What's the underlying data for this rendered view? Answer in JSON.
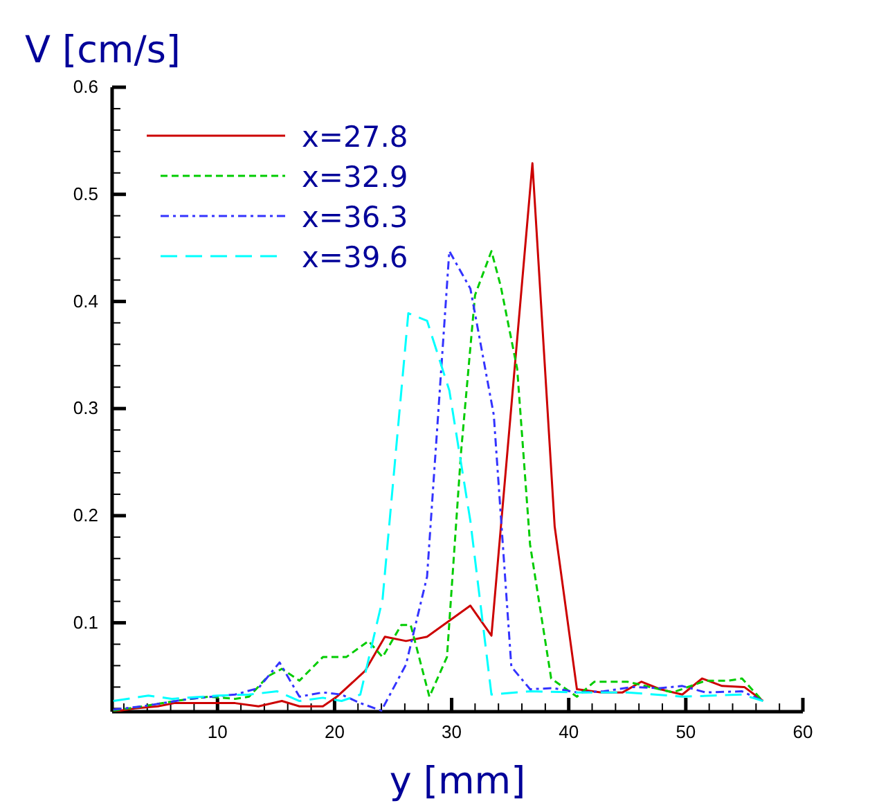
{
  "chart_data": {
    "type": "line",
    "xlabel": "y [mm]",
    "ylabel": "V [cm/s]",
    "xlim": [
      1,
      60
    ],
    "ylim": [
      0.017,
      0.6
    ],
    "xticks": [
      {
        "value": 2,
        "label": null
      },
      {
        "value": 4,
        "label": null
      },
      {
        "value": 6,
        "label": null
      },
      {
        "value": 8,
        "label": null
      },
      10,
      {
        "value": 12,
        "label": null
      },
      {
        "value": 14,
        "label": null
      },
      {
        "value": 16,
        "label": null
      },
      {
        "value": 18,
        "label": null
      },
      20,
      {
        "value": 22,
        "label": null
      },
      {
        "value": 24,
        "label": null
      },
      {
        "value": 26,
        "label": null
      },
      {
        "value": 28,
        "label": null
      },
      30,
      {
        "value": 32,
        "label": null
      },
      {
        "value": 34,
        "label": null
      },
      {
        "value": 36,
        "label": null
      },
      {
        "value": 38,
        "label": null
      },
      40,
      {
        "value": 42,
        "label": null
      },
      {
        "value": 44,
        "label": null
      },
      {
        "value": 46,
        "label": null
      },
      {
        "value": 48,
        "label": null
      },
      50,
      {
        "value": 52,
        "label": null
      },
      {
        "value": 54,
        "label": null
      },
      {
        "value": 56,
        "label": null
      },
      {
        "value": 58,
        "label": null
      },
      60
    ],
    "yticks": [
      {
        "value": 0.02,
        "label": null
      },
      {
        "value": 0.04,
        "label": null
      },
      {
        "value": 0.06,
        "label": null
      },
      {
        "value": 0.08,
        "label": null
      },
      0.1,
      {
        "value": 0.12,
        "label": null
      },
      {
        "value": 0.14,
        "label": null
      },
      {
        "value": 0.16,
        "label": null
      },
      {
        "value": 0.18,
        "label": null
      },
      0.2,
      {
        "value": 0.22,
        "label": null
      },
      {
        "value": 0.24,
        "label": null
      },
      {
        "value": 0.26,
        "label": null
      },
      {
        "value": 0.28,
        "label": null
      },
      0.3,
      {
        "value": 0.32,
        "label": null
      },
      {
        "value": 0.34,
        "label": null
      },
      {
        "value": 0.36,
        "label": null
      },
      {
        "value": 0.38,
        "label": null
      },
      0.4,
      {
        "value": 0.42,
        "label": null
      },
      {
        "value": 0.44,
        "label": null
      },
      {
        "value": 0.46,
        "label": null
      },
      {
        "value": 0.48,
        "label": null
      },
      0.5,
      {
        "value": 0.52,
        "label": null
      },
      {
        "value": 0.54,
        "label": null
      },
      {
        "value": 0.56,
        "label": null
      },
      {
        "value": 0.58,
        "label": null
      },
      0.6
    ],
    "grid": false,
    "legend": "top left",
    "marker": "none",
    "series": [
      {
        "name": "x=27.8",
        "color": "#cc0000",
        "line_style": "solid",
        "x": [
          1.1,
          2.9,
          4.9,
          6.3,
          11.5,
          13.5,
          15.5,
          17.0,
          19.0,
          20.2,
          22.6,
          24.3,
          26.1,
          27.9,
          31.6,
          33.4,
          36.9,
          38.8,
          40.7,
          42.8,
          44.6,
          46.2,
          47.8,
          49.7,
          51.4,
          53.1,
          55.0,
          56.6
        ],
        "values": [
          0.017,
          0.02,
          0.022,
          0.025,
          0.025,
          0.022,
          0.027,
          0.022,
          0.022,
          0.031,
          0.055,
          0.087,
          0.083,
          0.087,
          0.116,
          0.088,
          0.529,
          0.19,
          0.038,
          0.035,
          0.035,
          0.045,
          0.038,
          0.033,
          0.048,
          0.041,
          0.04,
          0.027
        ]
      },
      {
        "name": "x=32.9",
        "color": "#00cc00",
        "line_style": "dashed",
        "x": [
          1.1,
          3.6,
          6.4,
          9.2,
          11.5,
          12.7,
          14.3,
          15.5,
          17.0,
          19.0,
          21.0,
          22.9,
          24.1,
          25.7,
          26.5,
          28.1,
          29.6,
          30.8,
          32.0,
          33.4,
          34.2,
          35.6,
          36.7,
          38.5,
          40.7,
          42.2,
          45.0,
          48.9,
          51.7,
          53.7,
          54.8,
          56.4
        ],
        "values": [
          0.018,
          0.022,
          0.027,
          0.031,
          0.029,
          0.031,
          0.05,
          0.057,
          0.046,
          0.068,
          0.068,
          0.083,
          0.068,
          0.098,
          0.098,
          0.031,
          0.068,
          0.259,
          0.406,
          0.447,
          0.414,
          0.337,
          0.173,
          0.048,
          0.031,
          0.045,
          0.045,
          0.035,
          0.046,
          0.046,
          0.048,
          0.029
        ]
      },
      {
        "name": "x=36.3",
        "color": "#3333ff",
        "line_style": "dashdot",
        "x": [
          1.1,
          3.6,
          7.6,
          11.5,
          13.5,
          15.3,
          17.0,
          19.0,
          20.6,
          22.2,
          24.0,
          26.1,
          27.9,
          29.8,
          31.6,
          33.6,
          35.1,
          36.7,
          38.7,
          40.7,
          43.0,
          45.4,
          47.8,
          49.7,
          51.7,
          54.8,
          56.6
        ],
        "values": [
          0.019,
          0.022,
          0.029,
          0.033,
          0.039,
          0.063,
          0.031,
          0.035,
          0.033,
          0.025,
          0.018,
          0.061,
          0.143,
          0.447,
          0.412,
          0.294,
          0.059,
          0.038,
          0.039,
          0.035,
          0.036,
          0.04,
          0.039,
          0.041,
          0.035,
          0.036,
          0.027
        ]
      },
      {
        "name": "x=39.6",
        "color": "#00ffff",
        "line_style": "longdash",
        "x": [
          1.1,
          4.1,
          6.1,
          10.0,
          12.7,
          15.1,
          17.0,
          19.0,
          20.6,
          22.2,
          24.1,
          26.3,
          27.9,
          29.8,
          31.6,
          33.4,
          36.7,
          40.7,
          45.0,
          49.7,
          54.8,
          56.6
        ],
        "values": [
          0.027,
          0.032,
          0.029,
          0.032,
          0.033,
          0.036,
          0.027,
          0.03,
          0.027,
          0.033,
          0.122,
          0.389,
          0.382,
          0.317,
          0.195,
          0.033,
          0.036,
          0.035,
          0.035,
          0.031,
          0.033,
          0.027
        ]
      }
    ]
  }
}
